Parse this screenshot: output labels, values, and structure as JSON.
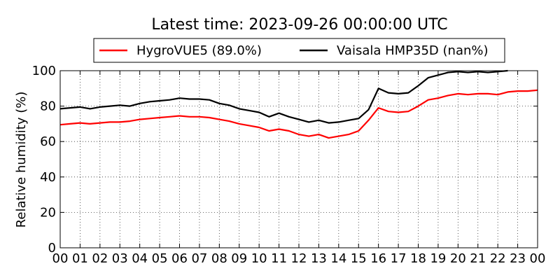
{
  "chart_data": {
    "type": "line",
    "title": "Latest time: 2023-09-26 00:00:00 UTC",
    "xlabel": "",
    "ylabel": "Relative humidity (%)",
    "xlim": [
      0,
      24
    ],
    "ylim": [
      0,
      100
    ],
    "x_tick_labels": [
      "00",
      "01",
      "02",
      "03",
      "04",
      "05",
      "06",
      "07",
      "08",
      "09",
      "10",
      "11",
      "12",
      "13",
      "14",
      "15",
      "16",
      "17",
      "18",
      "19",
      "20",
      "21",
      "22",
      "23",
      "00"
    ],
    "y_tick_labels": [
      "0",
      "20",
      "40",
      "60",
      "80",
      "100"
    ],
    "y_ticks": [
      0,
      20,
      40,
      60,
      80,
      100
    ],
    "grid": true,
    "legend_position": "top-center",
    "series": [
      {
        "name": "HygroVUE5 (89.0%)",
        "color": "#ff0000",
        "x": [
          0,
          0.5,
          1,
          1.5,
          2,
          2.5,
          3,
          3.5,
          4,
          4.5,
          5,
          5.5,
          6,
          6.5,
          7,
          7.5,
          8,
          8.5,
          9,
          9.5,
          10,
          10.5,
          11,
          11.5,
          12,
          12.5,
          13,
          13.5,
          14,
          14.5,
          15,
          15.5,
          16,
          16.5,
          17,
          17.5,
          18,
          18.5,
          19,
          19.5,
          20,
          20.5,
          21,
          21.5,
          22,
          22.5,
          23,
          23.5,
          24
        ],
        "y": [
          69.5,
          70,
          70.5,
          70,
          70.5,
          71,
          71,
          71.5,
          72.5,
          73,
          73.5,
          74,
          74.5,
          74,
          74,
          73.5,
          72.5,
          71.5,
          70,
          69,
          68,
          66,
          67,
          66,
          64,
          63,
          64,
          62,
          63,
          64,
          66,
          72,
          79,
          77,
          76.5,
          77,
          80,
          83.5,
          84.5,
          86,
          87,
          86.5,
          87,
          87,
          86.5,
          88,
          88.5,
          88.5,
          89
        ]
      },
      {
        "name": "Vaisala HMP35D (nan%)",
        "color": "#000000",
        "x": [
          0,
          0.5,
          1,
          1.5,
          2,
          2.5,
          3,
          3.5,
          4,
          4.5,
          5,
          5.5,
          6,
          6.5,
          7,
          7.5,
          8,
          8.5,
          9,
          9.5,
          10,
          10.5,
          11,
          11.5,
          12,
          12.5,
          13,
          13.5,
          14,
          14.5,
          15,
          15.5,
          16,
          16.5,
          17,
          17.5,
          18,
          18.5,
          19,
          19.5,
          20,
          20.5,
          21,
          21.5,
          22,
          22.5
        ],
        "y": [
          78.5,
          79,
          79.5,
          78.5,
          79.5,
          80,
          80.5,
          80,
          81.5,
          82.5,
          83,
          83.5,
          84.5,
          84,
          84,
          83.5,
          81.5,
          80.5,
          78.5,
          77.5,
          76.5,
          74,
          76,
          74,
          72.5,
          71,
          72,
          70.5,
          71,
          72,
          73,
          78,
          90,
          87.5,
          87,
          87.5,
          91.5,
          96,
          97.5,
          99,
          99.5,
          99,
          99.5,
          99,
          99.5,
          100
        ]
      }
    ]
  }
}
